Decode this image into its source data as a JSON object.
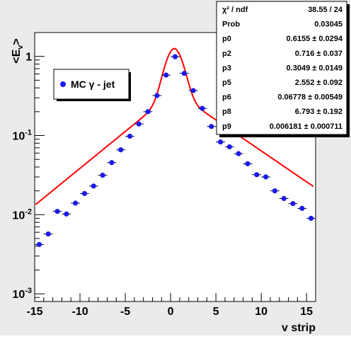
{
  "chart_data": {
    "type": "scatter",
    "ylabel_main": "<E",
    "ylabel_sub": "v",
    "ylabel_close": ">",
    "xlabel": "v strip",
    "xlim": [
      -15,
      16
    ],
    "ylim": [
      0.0008,
      2.0
    ],
    "yscale": "log",
    "xticks": [
      -15,
      -10,
      -5,
      0,
      5,
      10,
      15
    ],
    "ytick_labels": [
      {
        "value": 1,
        "base": "1",
        "exp": ""
      },
      {
        "value": 0.1,
        "base": "10",
        "exp": "-1"
      },
      {
        "value": 0.01,
        "base": "10",
        "exp": "-2"
      },
      {
        "value": 0.001,
        "base": "10",
        "exp": "-3"
      }
    ],
    "colors": {
      "markers": "#1a1aee",
      "fit": "#ff0000",
      "frame_bg": "#ebebeb",
      "plot_bg": "#ffffff"
    },
    "legend": {
      "marker": "circle",
      "label": "MC γ - jet"
    },
    "series": [
      {
        "name": "MC γ - jet",
        "x": [
          -14.5,
          -13.5,
          -12.5,
          -11.5,
          -10.5,
          -9.5,
          -8.5,
          -7.5,
          -6.5,
          -5.5,
          -4.5,
          -3.5,
          -2.5,
          -1.5,
          -0.5,
          0.5,
          1.5,
          2.5,
          3.5,
          4.5,
          5.5,
          6.5,
          7.5,
          8.5,
          9.5,
          10.5,
          11.5,
          12.5,
          13.5,
          14.5,
          15.5
        ],
        "y": [
          0.0042,
          0.0057,
          0.011,
          0.0102,
          0.014,
          0.0185,
          0.023,
          0.0315,
          0.0455,
          0.066,
          0.098,
          0.14,
          0.2,
          0.32,
          0.58,
          0.99,
          0.61,
          0.37,
          0.22,
          0.13,
          0.083,
          0.072,
          0.059,
          0.044,
          0.032,
          0.03,
          0.02,
          0.016,
          0.0138,
          0.012,
          0.009
        ]
      }
    ],
    "fit_function": {
      "peak_x": 0.4,
      "peak_y": 0.9,
      "core_width": 0.9,
      "left_tail_slope": 0.215,
      "left_tail_norm": 0.36,
      "right_tail_slope": 0.18,
      "right_tail_norm": 0.36
    },
    "stats_box": [
      {
        "label": "χ² / ndf",
        "value": "38.55 / 24"
      },
      {
        "label": "Prob",
        "value": "0.03045"
      },
      {
        "label": "p0",
        "value": "0.6155 ± 0.0294"
      },
      {
        "label": "p2",
        "value": "0.716 ± 0.037"
      },
      {
        "label": "p3",
        "value": "0.3049 ± 0.0149"
      },
      {
        "label": "p5",
        "value": "2.552 ± 0.092"
      },
      {
        "label": "p6",
        "value": "0.06778 ± 0.00549"
      },
      {
        "label": "p8",
        "value": "6.793 ± 0.192"
      },
      {
        "label": "p9",
        "value": "0.006181 ± 0.000711"
      }
    ]
  }
}
